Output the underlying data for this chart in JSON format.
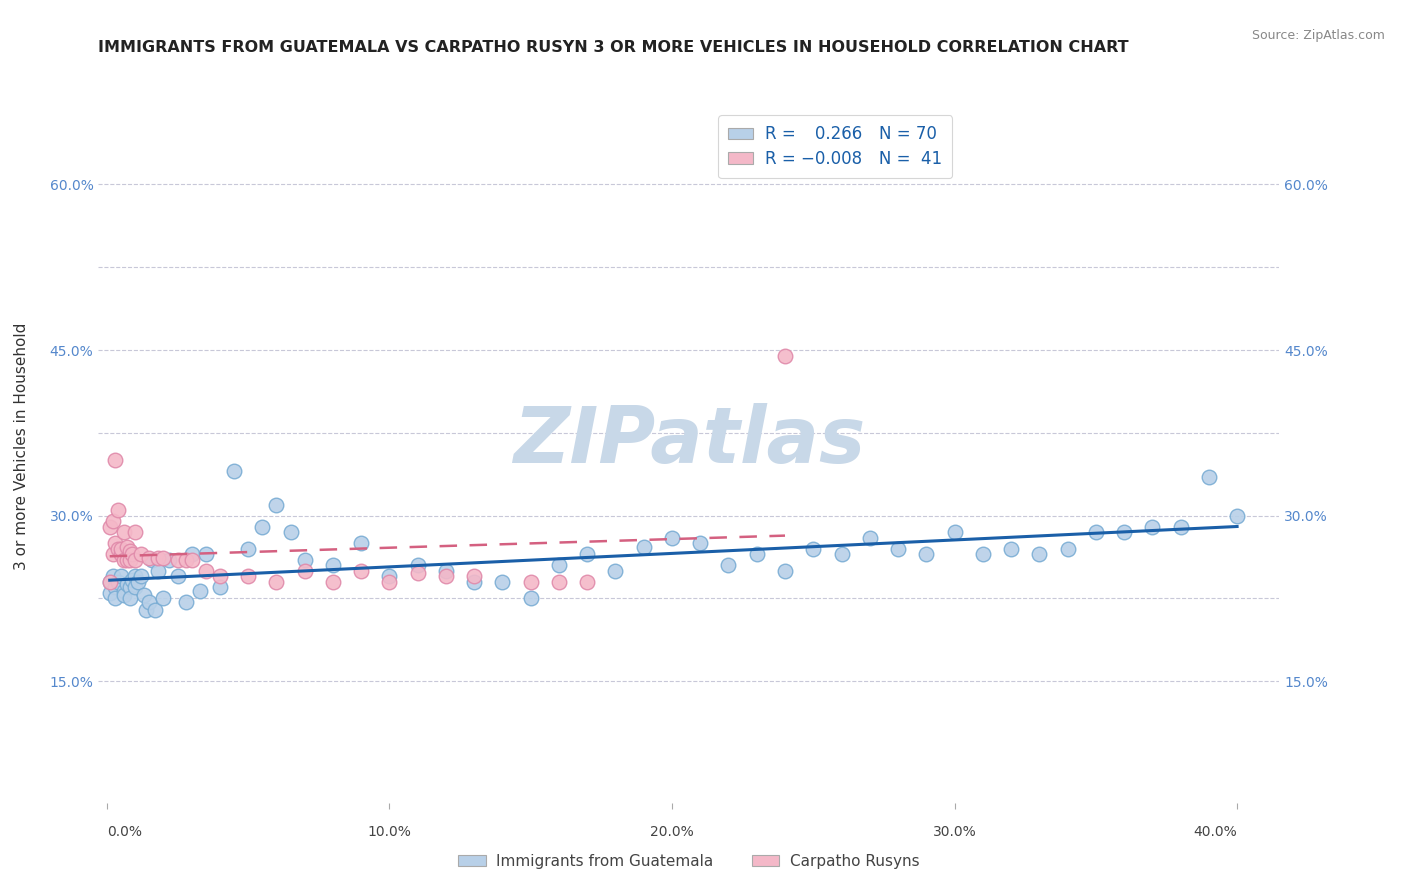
{
  "title": "IMMIGRANTS FROM GUATEMALA VS CARPATHO RUSYN 3 OR MORE VEHICLES IN HOUSEHOLD CORRELATION CHART",
  "source": "Source: ZipAtlas.com",
  "ylabel": "3 or more Vehicles in Household",
  "y_min": 0.04,
  "y_max": 0.67,
  "x_min": -0.003,
  "x_max": 0.415,
  "r_blue": 0.266,
  "n_blue": 70,
  "r_pink": -0.008,
  "n_pink": 41,
  "legend_label_blue": "Immigrants from Guatemala",
  "legend_label_pink": "Carpatho Rusyns",
  "blue_color": "#b8d0e8",
  "pink_color": "#f4b8c8",
  "blue_edge_color": "#7aadd4",
  "pink_edge_color": "#e08aaa",
  "blue_line_color": "#1a5fa8",
  "pink_line_color": "#d46080",
  "grid_color": "#c8c8d8",
  "background_color": "#ffffff",
  "watermark": "ZIPatlas",
  "watermark_color": "#c8d8e8",
  "ytick_positions": [
    0.15,
    0.225,
    0.3,
    0.375,
    0.45,
    0.525,
    0.6
  ],
  "ytick_labels_left": [
    "15.0%",
    "",
    "30.0%",
    "",
    "45.0%",
    "",
    "60.0%"
  ],
  "ytick_labels_right": [
    "15.0%",
    "",
    "30.0%",
    "",
    "45.0%",
    "",
    "60.0%"
  ],
  "xtick_positions": [
    0.0,
    0.1,
    0.2,
    0.3,
    0.4
  ],
  "xtick_labels": [
    "0.0%",
    "10.0%",
    "20.0%",
    "30.0%",
    "40.0%"
  ],
  "blue_x": [
    0.001,
    0.001,
    0.002,
    0.003,
    0.003,
    0.004,
    0.005,
    0.006,
    0.006,
    0.007,
    0.008,
    0.008,
    0.009,
    0.01,
    0.01,
    0.011,
    0.012,
    0.013,
    0.014,
    0.015,
    0.016,
    0.017,
    0.018,
    0.02,
    0.022,
    0.025,
    0.028,
    0.03,
    0.033,
    0.035,
    0.04,
    0.045,
    0.05,
    0.055,
    0.06,
    0.065,
    0.07,
    0.08,
    0.09,
    0.1,
    0.11,
    0.12,
    0.13,
    0.14,
    0.15,
    0.16,
    0.17,
    0.18,
    0.19,
    0.2,
    0.21,
    0.22,
    0.23,
    0.24,
    0.25,
    0.26,
    0.27,
    0.28,
    0.29,
    0.3,
    0.31,
    0.32,
    0.33,
    0.34,
    0.35,
    0.36,
    0.37,
    0.38,
    0.39,
    0.4
  ],
  "blue_y": [
    0.24,
    0.23,
    0.245,
    0.235,
    0.225,
    0.24,
    0.245,
    0.232,
    0.228,
    0.238,
    0.235,
    0.225,
    0.242,
    0.245,
    0.235,
    0.24,
    0.245,
    0.228,
    0.215,
    0.222,
    0.26,
    0.215,
    0.25,
    0.225,
    0.26,
    0.245,
    0.222,
    0.265,
    0.232,
    0.265,
    0.235,
    0.34,
    0.27,
    0.29,
    0.31,
    0.285,
    0.26,
    0.255,
    0.275,
    0.245,
    0.255,
    0.25,
    0.24,
    0.24,
    0.225,
    0.255,
    0.265,
    0.25,
    0.272,
    0.28,
    0.275,
    0.255,
    0.265,
    0.25,
    0.27,
    0.265,
    0.28,
    0.27,
    0.265,
    0.285,
    0.265,
    0.27,
    0.265,
    0.27,
    0.285,
    0.285,
    0.29,
    0.29,
    0.335,
    0.3
  ],
  "pink_x": [
    0.001,
    0.001,
    0.002,
    0.002,
    0.003,
    0.003,
    0.004,
    0.004,
    0.005,
    0.005,
    0.006,
    0.006,
    0.007,
    0.007,
    0.008,
    0.008,
    0.009,
    0.01,
    0.01,
    0.012,
    0.015,
    0.018,
    0.02,
    0.025,
    0.028,
    0.03,
    0.035,
    0.04,
    0.05,
    0.06,
    0.07,
    0.08,
    0.09,
    0.1,
    0.11,
    0.12,
    0.13,
    0.15,
    0.16,
    0.17,
    0.24
  ],
  "pink_y": [
    0.24,
    0.29,
    0.295,
    0.265,
    0.275,
    0.35,
    0.305,
    0.27,
    0.265,
    0.27,
    0.285,
    0.26,
    0.272,
    0.26,
    0.268,
    0.26,
    0.265,
    0.26,
    0.285,
    0.265,
    0.262,
    0.262,
    0.262,
    0.26,
    0.26,
    0.26,
    0.25,
    0.245,
    0.245,
    0.24,
    0.25,
    0.24,
    0.25,
    0.24,
    0.248,
    0.245,
    0.245,
    0.24,
    0.24,
    0.24,
    0.445
  ]
}
